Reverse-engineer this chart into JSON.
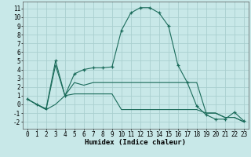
{
  "xlabel": "Humidex (Indice chaleur)",
  "background_color": "#c8e8e8",
  "grid_color": "#aacfcf",
  "line_color": "#1a6b5a",
  "xlim": [
    -0.5,
    23.5
  ],
  "ylim": [
    -2.8,
    11.8
  ],
  "xticks": [
    0,
    1,
    2,
    3,
    4,
    5,
    6,
    7,
    8,
    9,
    10,
    11,
    12,
    13,
    14,
    15,
    16,
    17,
    18,
    19,
    20,
    21,
    22,
    23
  ],
  "yticks": [
    -2,
    -1,
    0,
    1,
    2,
    3,
    4,
    5,
    6,
    7,
    8,
    9,
    10,
    11
  ],
  "series1_x": [
    0,
    1,
    2,
    3,
    4,
    5,
    6,
    7,
    8,
    9,
    10,
    11,
    12,
    13,
    14,
    15,
    16,
    17,
    18,
    19,
    20,
    21,
    22,
    23
  ],
  "series1_y": [
    0.6,
    0.0,
    -0.5,
    5.0,
    1.0,
    3.5,
    4.0,
    4.2,
    4.2,
    4.3,
    8.5,
    10.5,
    11.1,
    11.1,
    10.5,
    9.0,
    4.5,
    2.5,
    -0.2,
    -1.2,
    -1.7,
    -1.7,
    -0.9,
    -1.9
  ],
  "series2_x": [
    0,
    1,
    2,
    3,
    4,
    5,
    6,
    7,
    8,
    9,
    10,
    11,
    12,
    13,
    14,
    15,
    16,
    17,
    18,
    19,
    20,
    21,
    22,
    23
  ],
  "series2_y": [
    0.6,
    0.0,
    -0.6,
    4.5,
    1.0,
    2.5,
    2.2,
    2.5,
    2.5,
    2.5,
    2.5,
    2.5,
    2.5,
    2.5,
    2.5,
    2.5,
    2.5,
    2.5,
    2.5,
    -1.0,
    -1.0,
    -1.5,
    -1.5,
    -2.0
  ],
  "series3_x": [
    0,
    1,
    2,
    3,
    4,
    5,
    6,
    7,
    8,
    9,
    10,
    11,
    12,
    13,
    14,
    15,
    16,
    17,
    18,
    19,
    20,
    21,
    22,
    23
  ],
  "series3_y": [
    0.6,
    0.0,
    -0.6,
    0.0,
    1.0,
    1.2,
    1.2,
    1.2,
    1.2,
    1.2,
    -0.6,
    -0.6,
    -0.6,
    -0.6,
    -0.6,
    -0.6,
    -0.6,
    -0.6,
    -0.6,
    -1.0,
    -1.0,
    -1.5,
    -1.5,
    -2.0
  ],
  "xlabel_fontsize": 6.5,
  "tick_fontsize": 5.5
}
